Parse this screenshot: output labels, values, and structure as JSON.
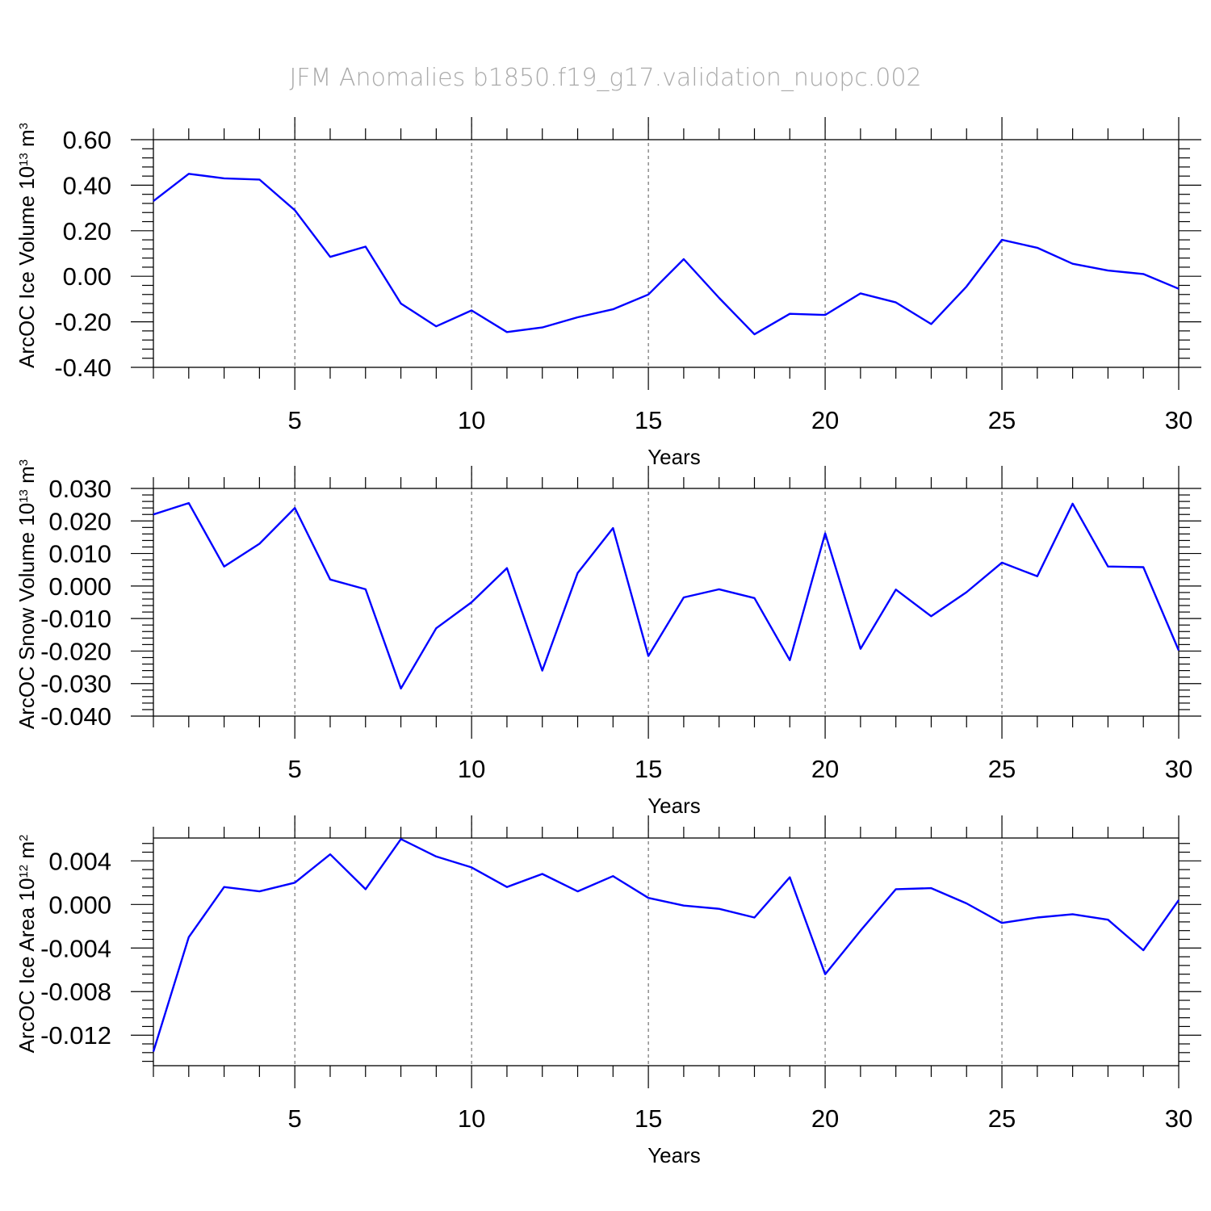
{
  "title": "JFM Anomalies b1850.f19_g17.validation_nuopc.002",
  "colors": {
    "series": "#0000ff",
    "title": "#aaaaaa"
  },
  "chart_data": [
    {
      "type": "line",
      "ylabel_main": "ArcOC Ice Volume 10",
      "ylabel_exp": "13",
      "ylabel_unit": " m",
      "ylabel_unit_exp": "3",
      "xlabel": "Years",
      "xlim": [
        1,
        30
      ],
      "ylim": [
        -0.4,
        0.6
      ],
      "xticks": [
        5,
        10,
        15,
        20,
        25,
        30
      ],
      "xtick_labels": [
        "5",
        "10",
        "15",
        "20",
        "25",
        "30"
      ],
      "yticks": [
        -0.4,
        -0.2,
        0.0,
        0.2,
        0.4,
        0.6
      ],
      "ytick_labels": [
        "-0.40",
        "-0.20",
        "0.00",
        "0.20",
        "0.40",
        "0.60"
      ],
      "grid_x": [
        5,
        10,
        15,
        20,
        25
      ],
      "series": [
        {
          "name": "Ice Volume",
          "x": [
            1,
            2,
            3,
            4,
            5,
            6,
            7,
            8,
            9,
            10,
            11,
            12,
            13,
            14,
            15,
            16,
            17,
            18,
            19,
            20,
            21,
            22,
            23,
            24,
            25,
            26,
            27,
            28,
            29,
            30
          ],
          "values": [
            0.33,
            0.45,
            0.43,
            0.425,
            0.29,
            0.085,
            0.13,
            -0.12,
            -0.22,
            -0.15,
            -0.245,
            -0.225,
            -0.18,
            -0.145,
            -0.08,
            0.075,
            -0.095,
            -0.255,
            -0.165,
            -0.17,
            -0.075,
            -0.115,
            -0.21,
            -0.045,
            0.16,
            0.125,
            0.055,
            0.025,
            0.01,
            -0.055
          ]
        }
      ]
    },
    {
      "type": "line",
      "ylabel_main": "ArcOC Snow Volume 10",
      "ylabel_exp": "13",
      "ylabel_unit": " m",
      "ylabel_unit_exp": "3",
      "xlabel": "Years",
      "xlim": [
        1,
        30
      ],
      "ylim": [
        -0.04,
        0.03
      ],
      "xticks": [
        5,
        10,
        15,
        20,
        25,
        30
      ],
      "xtick_labels": [
        "5",
        "10",
        "15",
        "20",
        "25",
        "30"
      ],
      "yticks": [
        -0.04,
        -0.03,
        -0.02,
        -0.01,
        0.0,
        0.01,
        0.02,
        0.03
      ],
      "ytick_labels": [
        "-0.040",
        "-0.030",
        "-0.020",
        "-0.010",
        "0.000",
        "0.010",
        "0.020",
        "0.030"
      ],
      "grid_x": [
        5,
        10,
        15,
        20,
        25
      ],
      "series": [
        {
          "name": "Snow Volume",
          "x": [
            1,
            2,
            3,
            4,
            5,
            6,
            7,
            8,
            9,
            10,
            11,
            12,
            13,
            14,
            15,
            16,
            17,
            18,
            19,
            20,
            21,
            22,
            23,
            24,
            25,
            26,
            27,
            28,
            29,
            30
          ],
          "values": [
            0.022,
            0.0255,
            0.006,
            0.013,
            0.024,
            0.002,
            -0.001,
            -0.0315,
            -0.013,
            -0.005,
            0.0055,
            -0.026,
            0.004,
            0.0178,
            -0.0215,
            -0.0035,
            -0.001,
            -0.0037,
            -0.0228,
            0.0162,
            -0.0193,
            -0.0011,
            -0.0093,
            -0.0019,
            0.0072,
            0.003,
            0.0253,
            0.006,
            0.0058,
            -0.0198
          ]
        }
      ]
    },
    {
      "type": "line",
      "ylabel_main": "ArcOC Ice Area 10",
      "ylabel_exp": "12",
      "ylabel_unit": " m",
      "ylabel_unit_exp": "2",
      "xlabel": "Years",
      "xlim": [
        1,
        30
      ],
      "ylim": [
        -0.0148,
        0.0061
      ],
      "xticks": [
        5,
        10,
        15,
        20,
        25,
        30
      ],
      "xtick_labels": [
        "5",
        "10",
        "15",
        "20",
        "25",
        "30"
      ],
      "yticks": [
        -0.012,
        -0.008,
        -0.004,
        0.0,
        0.004
      ],
      "ytick_labels": [
        "-0.012",
        "-0.008",
        "-0.004",
        "0.000",
        "0.004"
      ],
      "grid_x": [
        5,
        10,
        15,
        20,
        25
      ],
      "series": [
        {
          "name": "Ice Area",
          "x": [
            1,
            2,
            3,
            4,
            5,
            6,
            7,
            8,
            9,
            10,
            11,
            12,
            13,
            14,
            15,
            16,
            17,
            18,
            19,
            20,
            21,
            22,
            23,
            24,
            25,
            26,
            27,
            28,
            29,
            30
          ],
          "values": [
            -0.0135,
            -0.003,
            0.0016,
            0.0012,
            0.002,
            0.0046,
            0.0014,
            0.006,
            0.0044,
            0.0034,
            0.0016,
            0.0028,
            0.0012,
            0.0026,
            0.0006,
            -0.0001,
            -0.0004,
            -0.0012,
            0.0025,
            -0.0064,
            -0.0024,
            0.0014,
            0.0015,
            0.0001,
            -0.0017,
            -0.0012,
            -0.0009,
            -0.0014,
            -0.0042,
            0.0004
          ]
        }
      ]
    }
  ]
}
